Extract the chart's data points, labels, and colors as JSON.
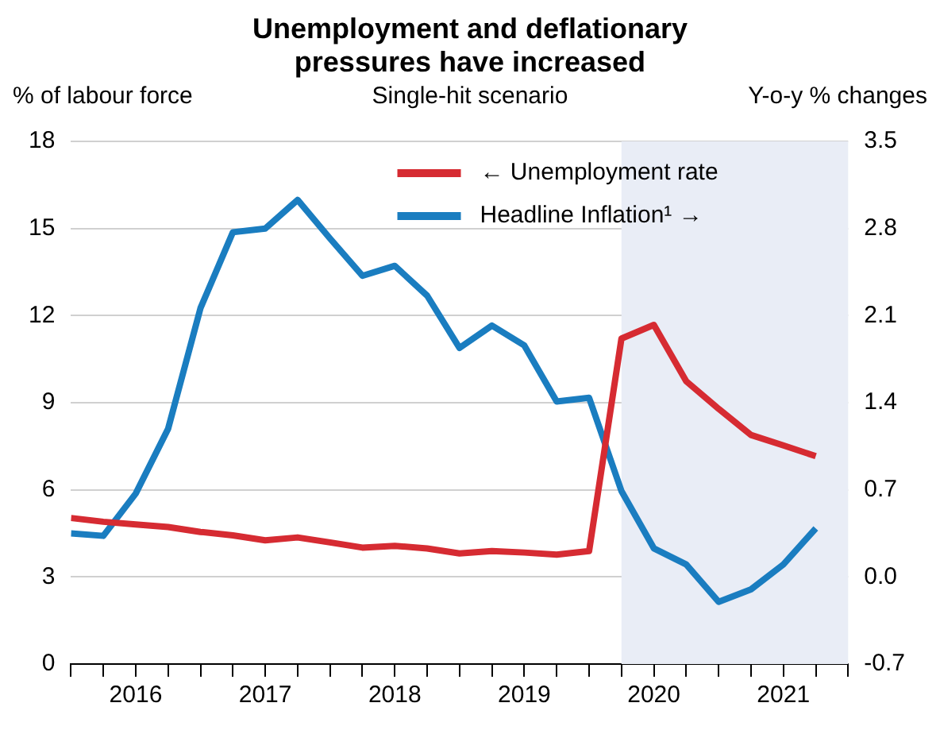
{
  "chart_data": {
    "type": "line",
    "title": "Unemployment and deflationary pressures have increased",
    "subtitle": "Single-hit scenario",
    "ylabel": "% of labour force",
    "y2label": "Y-o-y % changes",
    "x": [
      2016,
      2016.25,
      2016.5,
      2016.75,
      2017,
      2017.25,
      2017.5,
      2017.75,
      2018,
      2018.25,
      2018.5,
      2018.75,
      2019,
      2019.25,
      2019.5,
      2019.75,
      2020,
      2020.25,
      2020.5,
      2020.75,
      2021,
      2021.25,
      2021.5,
      2021.75
    ],
    "series": [
      {
        "name": "← Unemployment rate",
        "color": "#d62b32",
        "values": [
          5.03,
          4.9,
          4.81,
          4.72,
          4.55,
          4.43,
          4.26,
          4.36,
          4.19,
          4.01,
          4.07,
          3.98,
          3.81,
          3.89,
          3.84,
          3.77,
          3.89,
          11.21,
          11.68,
          9.74,
          8.79,
          7.89,
          7.53,
          7.16
        ]
      },
      {
        "name": "Headline Inflation¹ →",
        "color": "#1a7dc0",
        "axis": "y2",
        "values": [
          0.35,
          0.33,
          0.67,
          1.19,
          2.16,
          2.77,
          2.8,
          3.03,
          2.72,
          2.42,
          2.5,
          2.26,
          1.84,
          2.02,
          1.86,
          1.41,
          1.44,
          0.69,
          0.23,
          0.1,
          -0.2,
          -0.1,
          0.1,
          0.39
        ]
      }
    ],
    "xlim": [
      2016,
      2022
    ],
    "xticks": [
      {
        "value": 2016,
        "label": null
      },
      {
        "value": 2016.25,
        "label": null
      },
      {
        "value": 2016.5,
        "label": "2016"
      },
      {
        "value": 2016.75,
        "label": null
      },
      {
        "value": 2017,
        "label": null
      },
      {
        "value": 2017.25,
        "label": null
      },
      {
        "value": 2017.5,
        "label": "2017"
      },
      {
        "value": 2017.75,
        "label": null
      },
      {
        "value": 2018,
        "label": null
      },
      {
        "value": 2018.25,
        "label": null
      },
      {
        "value": 2018.5,
        "label": "2018"
      },
      {
        "value": 2018.75,
        "label": null
      },
      {
        "value": 2019,
        "label": null
      },
      {
        "value": 2019.25,
        "label": null
      },
      {
        "value": 2019.5,
        "label": "2019"
      },
      {
        "value": 2019.75,
        "label": null
      },
      {
        "value": 2020,
        "label": null
      },
      {
        "value": 2020.25,
        "label": null
      },
      {
        "value": 2020.5,
        "label": "2020"
      },
      {
        "value": 2020.75,
        "label": null
      },
      {
        "value": 2021,
        "label": null
      },
      {
        "value": 2021.25,
        "label": null
      },
      {
        "value": 2021.5,
        "label": "2021"
      },
      {
        "value": 2021.75,
        "label": null
      },
      {
        "value": 2022,
        "label": null
      }
    ],
    "ylim": [
      0,
      18
    ],
    "yticks": [
      0,
      3,
      6,
      9,
      12,
      15,
      18
    ],
    "y2lim": [
      -0.7,
      3.5
    ],
    "y2ticks": [
      -0.7,
      {
        "value": 0,
        "label": "0.0"
      },
      0.7,
      1.4,
      2.1,
      2.8,
      3.5
    ],
    "bands": [
      {
        "axis": "x",
        "from": 2020.25,
        "to": 2022,
        "color": "#e9edf6"
      }
    ],
    "grid": "y",
    "legend": "top right",
    "marker": "none"
  }
}
